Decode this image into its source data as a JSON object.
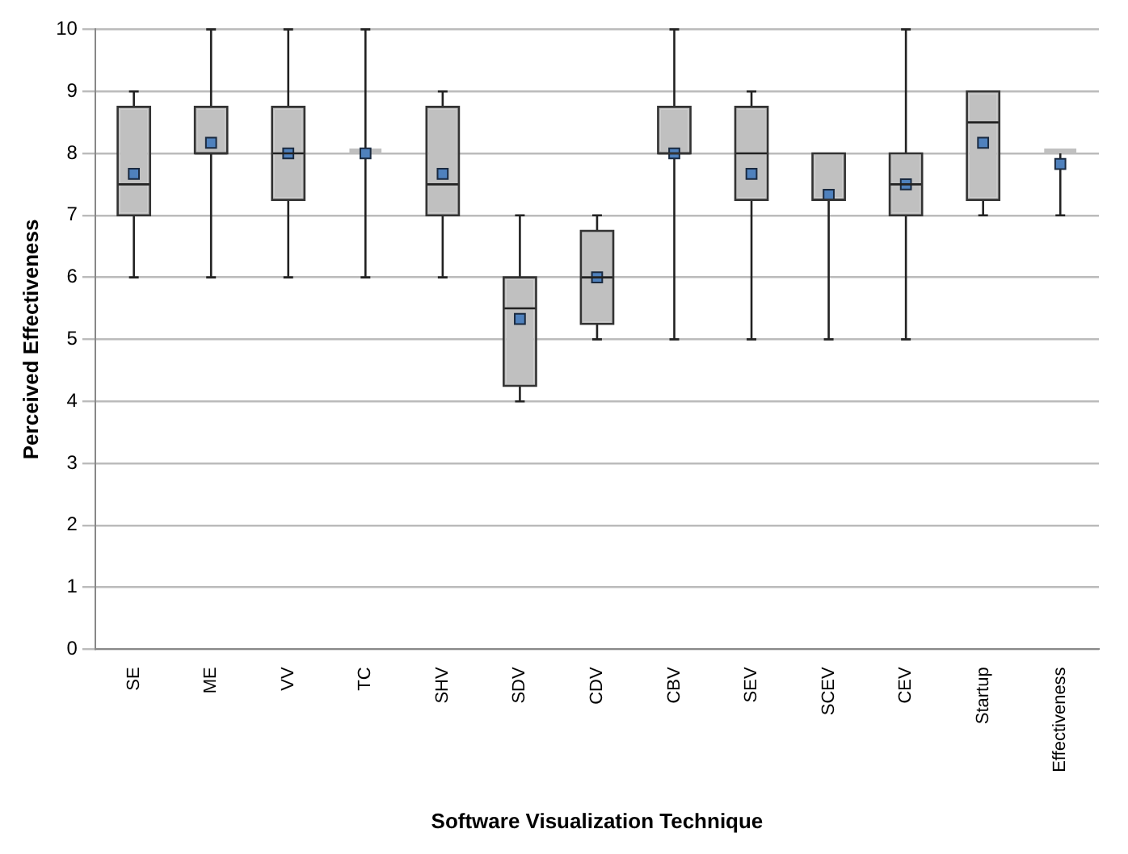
{
  "chart_data": {
    "type": "box",
    "xlabel": "Software Visualization Technique",
    "ylabel": "Perceived Effectiveness",
    "categories": [
      "SE",
      "ME",
      "VV",
      "TC",
      "SHV",
      "SDV",
      "CDV",
      "CBV",
      "SEV",
      "SCEV",
      "CEV",
      "Startup",
      "Effectiveness"
    ],
    "color": "#c0c0c0",
    "marker": "square",
    "boxes": [
      {
        "low": 6,
        "q1": 7,
        "median": 7.5,
        "q3": 8.75,
        "high": 9,
        "mean": 7.67
      },
      {
        "low": 6,
        "q1": 8,
        "median": 8,
        "q3": 8.75,
        "high": 10,
        "mean": 8.17
      },
      {
        "low": 6,
        "q1": 7.25,
        "median": 8,
        "q3": 8.75,
        "high": 10,
        "mean": 8
      },
      {
        "low": 6,
        "q1": 8,
        "median": 8,
        "q3": 8,
        "high": 10,
        "mean": 8
      },
      {
        "low": 6,
        "q1": 7,
        "median": 7.5,
        "q3": 8.75,
        "high": 9,
        "mean": 7.67
      },
      {
        "low": 4,
        "q1": 4.25,
        "median": 5.5,
        "q3": 6,
        "high": 7,
        "mean": 5.33
      },
      {
        "low": 5,
        "q1": 5.25,
        "median": 6,
        "q3": 6.75,
        "high": 7,
        "mean": 6
      },
      {
        "low": 5,
        "q1": 8,
        "median": 8,
        "q3": 8.75,
        "high": 10,
        "mean": 8
      },
      {
        "low": 5,
        "q1": 7.25,
        "median": 8,
        "q3": 8.75,
        "high": 9,
        "mean": 7.67
      },
      {
        "low": 5,
        "q1": 7.25,
        "median": 7.25,
        "q3": 8,
        "high": 8,
        "mean": 7.33
      },
      {
        "low": 5,
        "q1": 7,
        "median": 7.5,
        "q3": 8,
        "high": 10,
        "mean": 7.5
      },
      {
        "low": 7,
        "q1": 7.25,
        "median": 8.5,
        "q3": 9,
        "high": 9,
        "mean": 8.17
      },
      {
        "low": 7,
        "q1": 8,
        "median": 8,
        "q3": 8,
        "high": 8,
        "mean": 7.83
      }
    ],
    "ylim": [
      0,
      10
    ],
    "yticks": [
      0,
      1,
      2,
      3,
      4,
      5,
      6,
      7,
      8,
      9,
      10
    ],
    "grid": "y"
  }
}
